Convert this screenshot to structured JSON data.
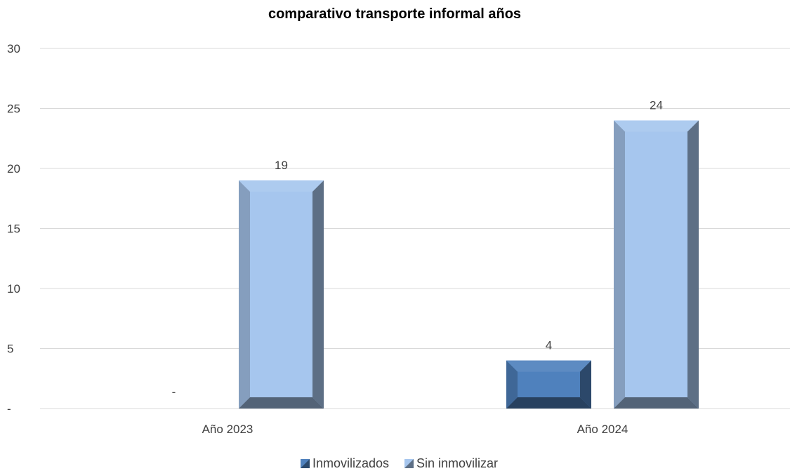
{
  "chart_data": {
    "type": "bar",
    "title": "comparativo transporte informal años",
    "categories": [
      "Año 2023",
      "Año 2024"
    ],
    "series": [
      {
        "name": "Inmovilizados",
        "values": [
          0,
          4
        ],
        "data_labels": [
          "-",
          "4"
        ],
        "color": "#4f81bd"
      },
      {
        "name": "Sin inmovilizar",
        "values": [
          19,
          24
        ],
        "data_labels": [
          "19",
          "24"
        ],
        "color": "#a6c6ee"
      }
    ],
    "y_ticks": [
      "-",
      "5",
      "10",
      "15",
      "20",
      "25",
      "30"
    ],
    "ylim": [
      0,
      30
    ],
    "grid": true,
    "legend_position": "bottom",
    "bar_style": "bevel"
  }
}
